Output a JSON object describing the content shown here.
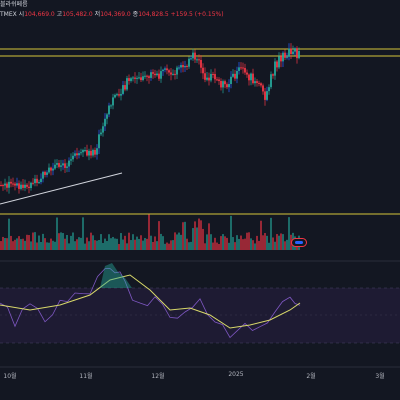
{
  "header": {
    "title_fragment": "블라쉬페름",
    "exchange_fragment": "TMEX",
    "open_label": "시",
    "open_value": "104,669.0",
    "high_label": "고",
    "high_value": "105,482.0",
    "low_label": "저",
    "low_value": "104,369.0",
    "close_label": "종",
    "close_value": "104,828.5",
    "change_value": "+159.5 (+0.15%)"
  },
  "time_axis": {
    "labels": [
      "10월",
      "11월",
      "12월",
      "2025",
      "2월",
      "3월"
    ]
  },
  "colors": {
    "background": "#131722",
    "up": "#26a69a",
    "down": "#f23645",
    "wick_up_blue": "#2962ff",
    "resistance_line": "#d4c43a",
    "rsi_line": "#7e57c2",
    "rsi_ma": "#d9d96a",
    "rsi_band": "#1e1b33",
    "trendline": "#d1d4dc"
  },
  "chart_data": {
    "type": "candlestick",
    "series": [
      {
        "name": "price"
      },
      {
        "name": "volume"
      },
      {
        "name": "rsi"
      }
    ]
  }
}
